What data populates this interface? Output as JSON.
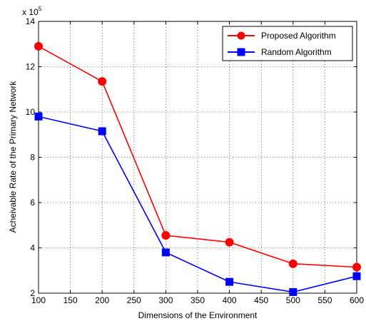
{
  "chart_data": {
    "type": "line",
    "x": [
      100,
      200,
      300,
      400,
      500,
      600
    ],
    "series": [
      {
        "name": "Proposed Algorithm",
        "values": [
          12.9,
          11.35,
          4.55,
          4.25,
          3.3,
          3.15
        ],
        "color": "#ff0000",
        "marker": "circle"
      },
      {
        "name": "Random Algorithm",
        "values": [
          9.8,
          9.15,
          3.8,
          2.5,
          2.05,
          2.75
        ],
        "color": "#0000ff",
        "marker": "square"
      }
    ],
    "xlabel": "Dimensions of the Environment",
    "ylabel": "Acheivable Rate of the Primary Network",
    "xlim": [
      100,
      600
    ],
    "ylim": [
      2,
      14
    ],
    "xticks": [
      "100",
      "150",
      "200",
      "250",
      "300",
      "350",
      "400",
      "450",
      "500",
      "550",
      "600"
    ],
    "yticks": [
      "2",
      "4",
      "6",
      "8",
      "10",
      "12",
      "14"
    ],
    "y_multiplier": {
      "base": "x 10",
      "exponent": "5"
    },
    "grid": true,
    "legend_position": "top-right"
  }
}
